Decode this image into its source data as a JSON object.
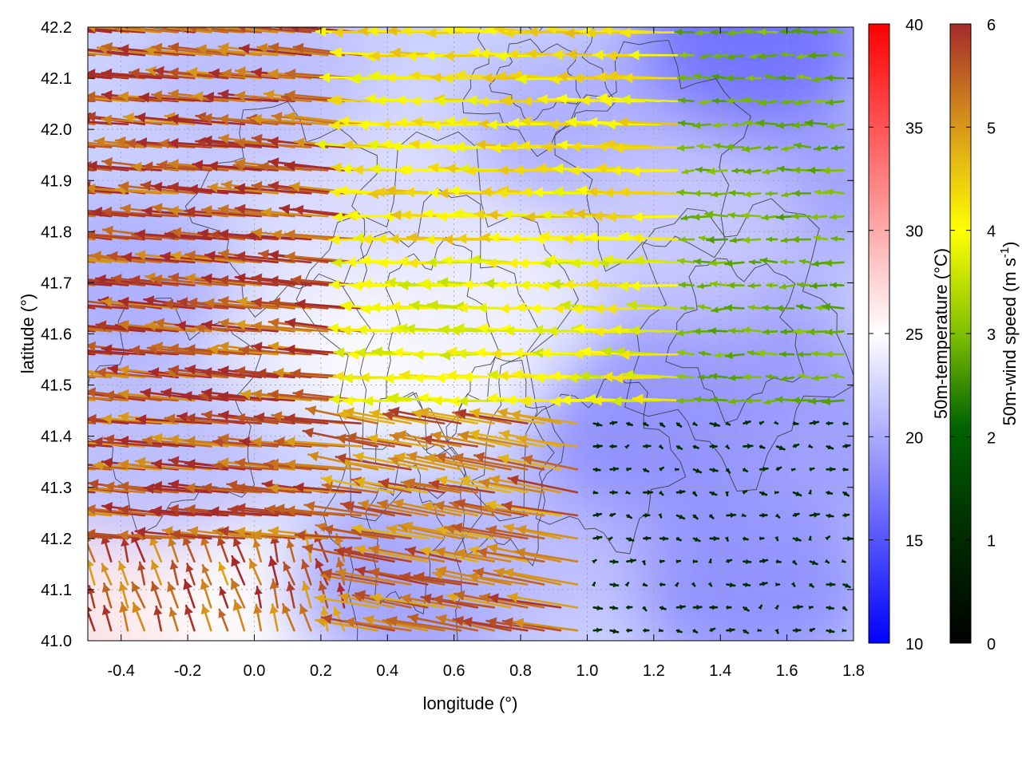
{
  "chart_data": {
    "type": "heatmap",
    "overlays": [
      "wind-vectors",
      "terrain-contours"
    ],
    "xlabel": "longitude (°)",
    "ylabel": "latitude (°)",
    "xlim": [
      -0.5,
      1.8
    ],
    "ylim": [
      41.0,
      42.2
    ],
    "x_ticks": [
      "-0.4",
      "-0.2",
      "0.0",
      "0.2",
      "0.4",
      "0.6",
      "0.8",
      "1.0",
      "1.2",
      "1.4",
      "1.6",
      "1.8"
    ],
    "y_ticks": [
      "41.0",
      "41.1",
      "41.2",
      "41.3",
      "41.4",
      "41.5",
      "41.6",
      "41.7",
      "41.8",
      "41.9",
      "42.0",
      "42.1",
      "42.2"
    ],
    "grid": true,
    "temperature_colorbar": {
      "label": "50m-temperature (°C)",
      "range": [
        10,
        40
      ],
      "ticks": [
        "10",
        "15",
        "20",
        "25",
        "30",
        "35",
        "40"
      ],
      "colors": [
        "#0000ff",
        "#ffffff",
        "#ff0000"
      ]
    },
    "windspeed_colorbar": {
      "label": "50m-wind speed (m s",
      "label_sup": "-1",
      "label_end": ")",
      "range": [
        0,
        6
      ],
      "ticks": [
        "0",
        "1",
        "2",
        "3",
        "4",
        "5",
        "6"
      ],
      "colors": [
        "#000000",
        "#006400",
        "#7fbf00",
        "#ffff00",
        "#d99a1a",
        "#a52a2a"
      ]
    },
    "temperature_regions": [
      {
        "lon": -0.4,
        "lat": 41.05,
        "temp": 27
      },
      {
        "lon": -0.2,
        "lat": 41.1,
        "temp": 26
      },
      {
        "lon": 0.1,
        "lat": 41.05,
        "temp": 25
      },
      {
        "lon": 0.2,
        "lat": 41.6,
        "temp": 24
      },
      {
        "lon": 0.5,
        "lat": 41.55,
        "temp": 25
      },
      {
        "lon": 0.7,
        "lat": 41.7,
        "temp": 24
      },
      {
        "lon": 0.3,
        "lat": 41.9,
        "temp": 23
      },
      {
        "lon": 0.0,
        "lat": 42.1,
        "temp": 21
      },
      {
        "lon": -0.4,
        "lat": 41.7,
        "temp": 20
      },
      {
        "lon": -0.3,
        "lat": 41.35,
        "temp": 21
      },
      {
        "lon": 0.45,
        "lat": 41.1,
        "temp": 19
      },
      {
        "lon": 0.85,
        "lat": 41.2,
        "temp": 21
      },
      {
        "lon": 1.0,
        "lat": 42.0,
        "temp": 20
      },
      {
        "lon": 1.2,
        "lat": 41.4,
        "temp": 18
      },
      {
        "lon": 1.4,
        "lat": 41.6,
        "temp": 19
      },
      {
        "lon": 1.5,
        "lat": 41.1,
        "temp": 18
      },
      {
        "lon": 1.6,
        "lat": 41.9,
        "temp": 19
      },
      {
        "lon": 1.5,
        "lat": 42.18,
        "temp": 16
      },
      {
        "lon": 1.75,
        "lat": 41.4,
        "temp": 19
      },
      {
        "lon": 1.3,
        "lat": 41.8,
        "temp": 22
      }
    ],
    "wind_regimes": [
      {
        "lon_range": [
          -0.5,
          0.35
        ],
        "lat_range": [
          41.2,
          42.2
        ],
        "u": -5.8,
        "v": 0.55,
        "speed": 6.0
      },
      {
        "lon_range": [
          -0.5,
          0.3
        ],
        "lat_range": [
          41.0,
          41.2
        ],
        "u": -0.6,
        "v": 1.9,
        "speed": 5.8
      },
      {
        "lon_range": [
          0.35,
          1.0
        ],
        "lat_range": [
          41.0,
          41.45
        ],
        "u": -5.0,
        "v": 0.9,
        "speed": 5.6
      },
      {
        "lon_range": [
          0.35,
          1.3
        ],
        "lat_range": [
          41.45,
          41.75
        ],
        "u": -3.6,
        "v": 0.1,
        "speed": 3.8
      },
      {
        "lon_range": [
          0.35,
          1.3
        ],
        "lat_range": [
          41.75,
          42.2
        ],
        "u": -4.0,
        "v": 0.1,
        "speed": 4.2
      },
      {
        "lon_range": [
          1.3,
          1.8
        ],
        "lat_range": [
          41.45,
          42.2
        ],
        "u": -1.2,
        "v": 0.0,
        "speed": 2.4
      },
      {
        "lon_range": [
          1.0,
          1.8
        ],
        "lat_range": [
          41.0,
          41.45
        ],
        "u": 0.35,
        "v": -0.05,
        "speed": 0.6
      }
    ]
  }
}
